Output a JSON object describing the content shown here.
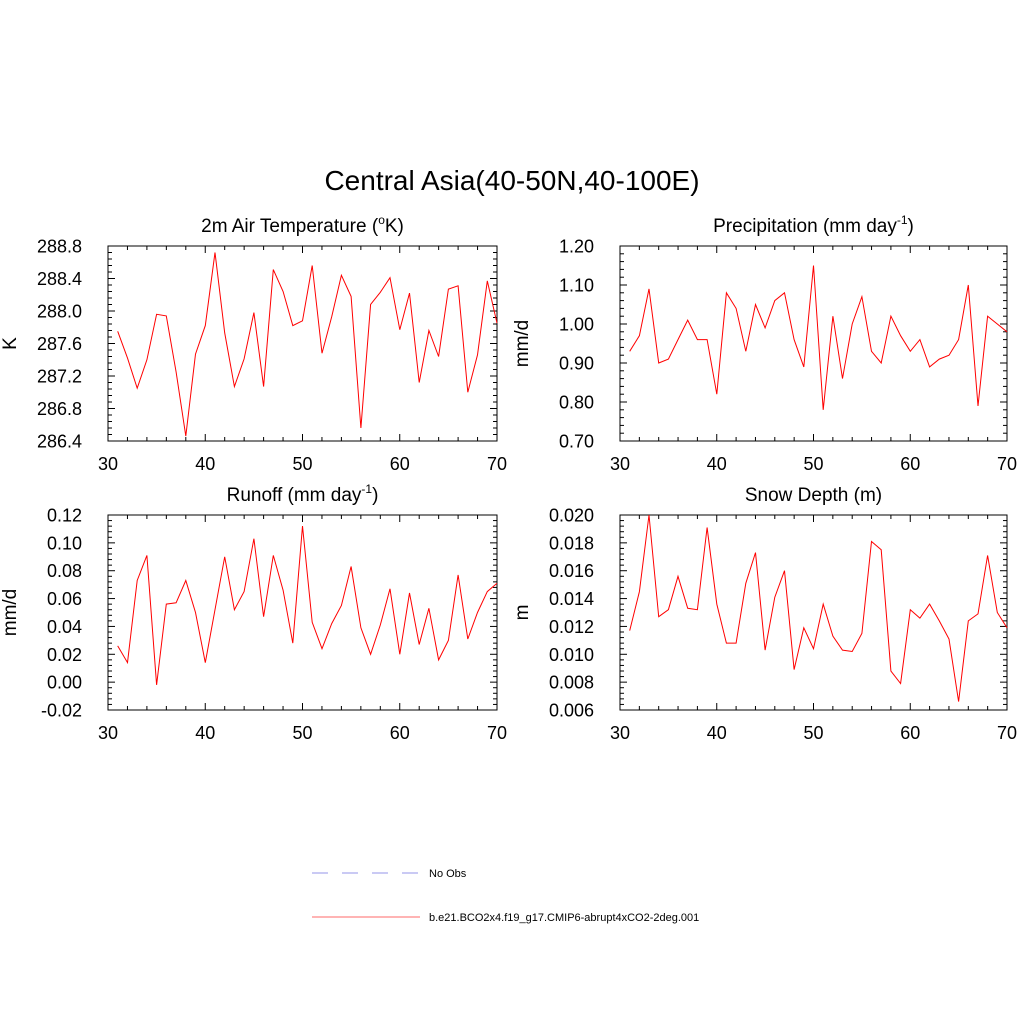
{
  "figure": {
    "title": "Central Asia(40-50N,40-100E)"
  },
  "chart_data": [
    {
      "type": "line",
      "title": "2m Air Temperature (",
      "title_sup": "o",
      "title_tail": "K)",
      "ylabel": "K",
      "xlim": [
        30,
        70
      ],
      "ylim": [
        286.4,
        288.8
      ],
      "yticks": [
        "286.4",
        "286.8",
        "287.2",
        "287.6",
        "288.0",
        "288.4",
        "288.8"
      ],
      "yminor_step": 0.08,
      "xticks": [
        "30",
        "40",
        "50",
        "60",
        "70"
      ],
      "x": [
        31,
        32,
        33,
        34,
        35,
        36,
        37,
        38,
        39,
        40,
        41,
        42,
        43,
        44,
        45,
        46,
        47,
        48,
        49,
        50,
        51,
        52,
        53,
        54,
        55,
        56,
        57,
        58,
        59,
        60,
        61,
        62,
        63,
        64,
        65,
        66,
        67,
        68,
        69,
        70
      ],
      "series": [
        {
          "name": "b.e21.BCO2x4.f19_g17.CMIP6-abrupt4xCO2-2deg.001",
          "color": "#ff0000",
          "values": [
            287.75,
            287.42,
            287.05,
            287.4,
            287.96,
            287.94,
            287.25,
            286.46,
            287.47,
            287.82,
            288.72,
            287.73,
            287.07,
            287.41,
            287.98,
            287.07,
            288.51,
            288.24,
            287.82,
            287.88,
            288.56,
            287.48,
            287.93,
            288.44,
            288.18,
            286.56,
            288.08,
            288.23,
            288.41,
            287.77,
            288.22,
            287.12,
            287.76,
            287.44,
            288.27,
            288.31,
            287.0,
            287.46,
            288.37,
            287.85
          ]
        }
      ]
    },
    {
      "type": "line",
      "title": "Precipitation (mm day",
      "title_sup": "-1",
      "title_tail": ")",
      "ylabel": "mm/d",
      "xlim": [
        30,
        70
      ],
      "ylim": [
        0.7,
        1.2
      ],
      "yticks": [
        "0.70",
        "0.80",
        "0.90",
        "1.00",
        "1.10",
        "1.20"
      ],
      "yminor_step": 0.02,
      "xticks": [
        "30",
        "40",
        "50",
        "60",
        "70"
      ],
      "x": [
        31,
        32,
        33,
        34,
        35,
        36,
        37,
        38,
        39,
        40,
        41,
        42,
        43,
        44,
        45,
        46,
        47,
        48,
        49,
        50,
        51,
        52,
        53,
        54,
        55,
        56,
        57,
        58,
        59,
        60,
        61,
        62,
        63,
        64,
        65,
        66,
        67,
        68,
        69,
        70
      ],
      "series": [
        {
          "name": "b.e21.BCO2x4.f19_g17.CMIP6-abrupt4xCO2-2deg.001",
          "color": "#ff0000",
          "values": [
            0.93,
            0.97,
            1.09,
            0.9,
            0.91,
            0.96,
            1.01,
            0.96,
            0.96,
            0.82,
            1.08,
            1.04,
            0.93,
            1.05,
            0.99,
            1.06,
            1.08,
            0.96,
            0.89,
            1.15,
            0.78,
            1.02,
            0.86,
            1.0,
            1.07,
            0.93,
            0.9,
            1.02,
            0.97,
            0.93,
            0.96,
            0.89,
            0.91,
            0.92,
            0.96,
            1.1,
            0.79,
            1.02,
            1.0,
            0.98
          ]
        }
      ]
    },
    {
      "type": "line",
      "title": "Runoff (mm day",
      "title_sup": "-1",
      "title_tail": ")",
      "ylabel": "mm/d",
      "xlim": [
        30,
        70
      ],
      "ylim": [
        -0.02,
        0.12
      ],
      "yticks": [
        "-0.02",
        "0.00",
        "0.02",
        "0.04",
        "0.06",
        "0.08",
        "0.10",
        "0.12"
      ],
      "yminor_step": 0.004,
      "xticks": [
        "30",
        "40",
        "50",
        "60",
        "70"
      ],
      "x": [
        31,
        32,
        33,
        34,
        35,
        36,
        37,
        38,
        39,
        40,
        41,
        42,
        43,
        44,
        45,
        46,
        47,
        48,
        49,
        50,
        51,
        52,
        53,
        54,
        55,
        56,
        57,
        58,
        59,
        60,
        61,
        62,
        63,
        64,
        65,
        66,
        67,
        68,
        69,
        70
      ],
      "series": [
        {
          "name": "b.e21.BCO2x4.f19_g17.CMIP6-abrupt4xCO2-2deg.001",
          "color": "#ff0000",
          "values": [
            0.026,
            0.014,
            0.073,
            0.091,
            -0.002,
            0.056,
            0.057,
            0.073,
            0.05,
            0.014,
            0.052,
            0.09,
            0.052,
            0.065,
            0.103,
            0.047,
            0.091,
            0.066,
            0.028,
            0.112,
            0.043,
            0.024,
            0.042,
            0.055,
            0.083,
            0.039,
            0.02,
            0.041,
            0.067,
            0.02,
            0.064,
            0.027,
            0.053,
            0.016,
            0.03,
            0.077,
            0.031,
            0.05,
            0.065,
            0.071
          ]
        }
      ]
    },
    {
      "type": "line",
      "title": "Snow Depth (m)",
      "title_sup": "",
      "title_tail": "",
      "ylabel": "m",
      "xlim": [
        30,
        70
      ],
      "ylim": [
        0.006,
        0.02
      ],
      "yticks": [
        "0.006",
        "0.008",
        "0.010",
        "0.012",
        "0.014",
        "0.016",
        "0.018",
        "0.020"
      ],
      "yminor_step": 0.0004,
      "xticks": [
        "30",
        "40",
        "50",
        "60",
        "70"
      ],
      "x": [
        31,
        32,
        33,
        34,
        35,
        36,
        37,
        38,
        39,
        40,
        41,
        42,
        43,
        44,
        45,
        46,
        47,
        48,
        49,
        50,
        51,
        52,
        53,
        54,
        55,
        56,
        57,
        58,
        59,
        60,
        61,
        62,
        63,
        64,
        65,
        66,
        67,
        68,
        69,
        70
      ],
      "series": [
        {
          "name": "b.e21.BCO2x4.f19_g17.CMIP6-abrupt4xCO2-2deg.001",
          "color": "#ff0000",
          "values": [
            0.0117,
            0.0145,
            0.02,
            0.0127,
            0.0132,
            0.0156,
            0.0133,
            0.0132,
            0.0191,
            0.0136,
            0.0108,
            0.0108,
            0.0151,
            0.0173,
            0.0103,
            0.0141,
            0.016,
            0.0089,
            0.0119,
            0.0104,
            0.0136,
            0.0113,
            0.0103,
            0.0102,
            0.0115,
            0.0181,
            0.0175,
            0.0088,
            0.0079,
            0.0132,
            0.0126,
            0.0136,
            0.0124,
            0.0111,
            0.0066,
            0.0124,
            0.0129,
            0.0171,
            0.013,
            0.0119
          ]
        }
      ]
    }
  ],
  "legend": {
    "items": [
      {
        "label": "No Obs",
        "color": "#aaaaee",
        "dash": "dashed"
      },
      {
        "label": "b.e21.BCO2x4.f19_g17.CMIP6-abrupt4xCO2-2deg.001",
        "color": "#ff8888",
        "dash": "solid"
      }
    ]
  }
}
